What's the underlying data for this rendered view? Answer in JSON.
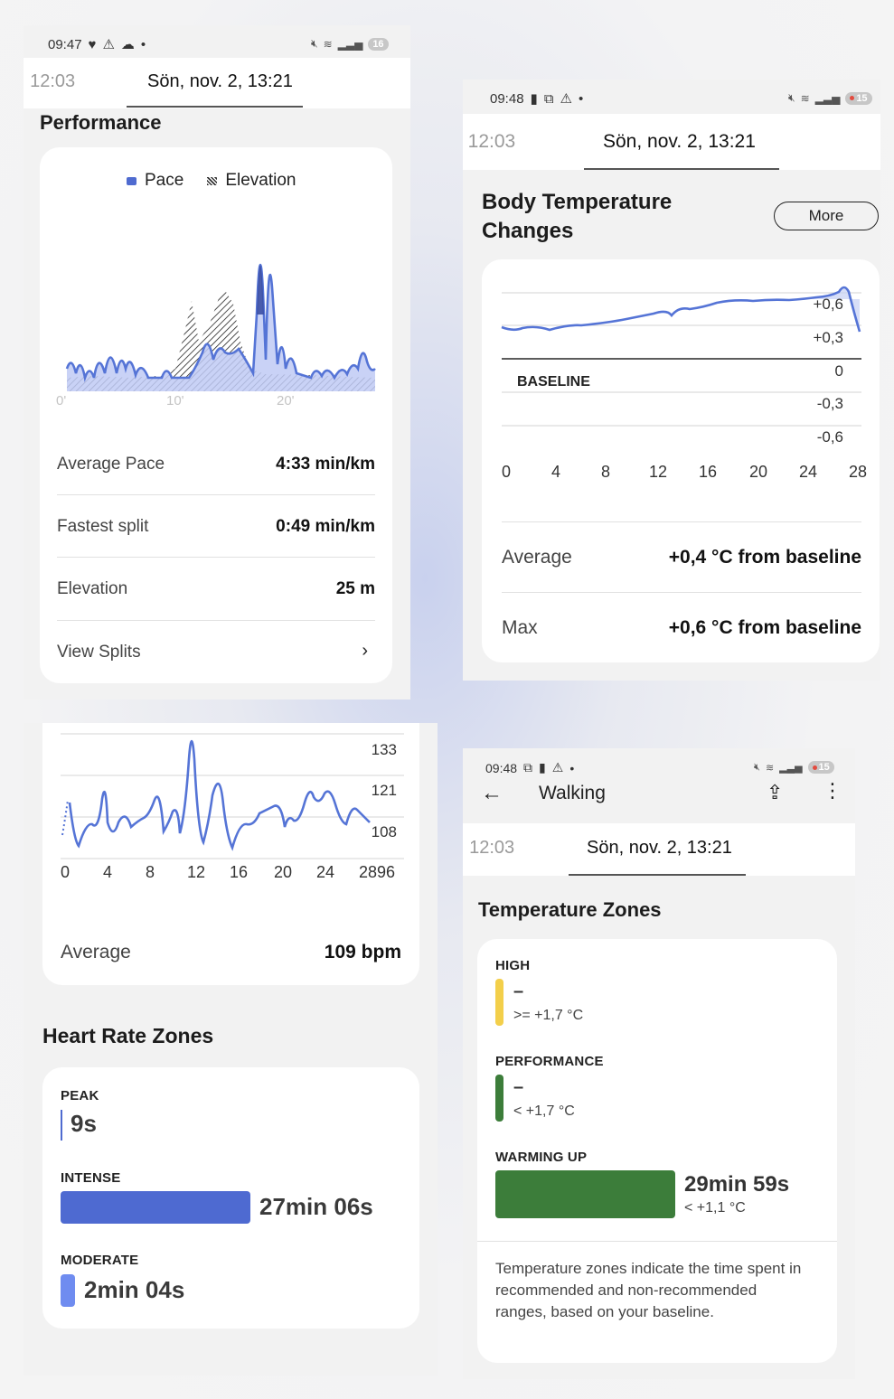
{
  "panel1": {
    "status_time": "09:47",
    "battery": "16",
    "tab_prev": ", 12:03",
    "tab_current": "Sön, nov. 2, 13:21",
    "section_title": "Performance",
    "legend": [
      "Pace",
      "Elevation"
    ],
    "x_ticks": [
      "0'",
      "10'",
      "20'"
    ],
    "rows": [
      {
        "label": "Average Pace",
        "value": "4:33 min/km"
      },
      {
        "label": "Fastest split",
        "value": "0:49 min/km"
      },
      {
        "label": "Elevation",
        "value": "25 m"
      }
    ],
    "view_splits": "View Splits"
  },
  "panel2": {
    "status_time": "09:48",
    "battery": "15",
    "tab_prev": ", 12:03",
    "tab_current": "Sön, nov. 2, 13:21",
    "title_line1": "Body Temperature",
    "title_line2": "Changes",
    "more_button": "More",
    "baseline_label": "BASELINE",
    "y_ticks": [
      "+0,6",
      "+0,3",
      "0",
      "-0,3",
      "-0,6"
    ],
    "x_ticks": [
      "0",
      "4",
      "8",
      "12",
      "16",
      "20",
      "24",
      "28"
    ],
    "rows": [
      {
        "label": "Average",
        "value": "+0,4 °C from baseline"
      },
      {
        "label": "Max",
        "value": "+0,6 °C from baseline"
      }
    ]
  },
  "panel3": {
    "y_ticks": [
      "133",
      "121",
      "108"
    ],
    "x_ticks": [
      "0",
      "4",
      "8",
      "12",
      "16",
      "20",
      "24",
      "28",
      "96"
    ],
    "average_label": "Average",
    "average_value": "109 bpm",
    "zones_title": "Heart Rate Zones",
    "zones": [
      {
        "label": "PEAK",
        "value": "9s",
        "fraction": 0.005,
        "color": "#4f6bd0"
      },
      {
        "label": "INTENSE",
        "value": "27min 06s",
        "fraction": 0.93,
        "color": "#4e6ad1"
      },
      {
        "label": "MODERATE",
        "value": "2min 04s",
        "fraction": 0.07,
        "color": "#6f8cf0"
      }
    ]
  },
  "panel4": {
    "status_time": "09:48",
    "battery": "15",
    "app_title": "Walking",
    "tab_prev": ", 12:03",
    "tab_current": "Sön, nov. 2, 13:21",
    "section_title": "Temperature Zones",
    "zones": [
      {
        "label": "HIGH",
        "value": "–",
        "range": ">= +1,7 °C",
        "color": "#f3cf4a"
      },
      {
        "label": "PERFORMANCE",
        "value": "–",
        "range": "< +1,7 °C",
        "color": "#3c7d3a"
      },
      {
        "label": "WARMING UP",
        "value": "29min 59s",
        "range": "< +1,1 °C",
        "color": "#3c7d3a",
        "fraction": 1.0
      }
    ],
    "note": "Temperature zones indicate the time spent in recommended and non-recommended ranges, based on your baseline."
  },
  "colors": {
    "accent": "#4f6bd0",
    "pace_fill": "#bfcaf4",
    "green": "#3c7d3a",
    "yellow": "#f3cf4a"
  }
}
